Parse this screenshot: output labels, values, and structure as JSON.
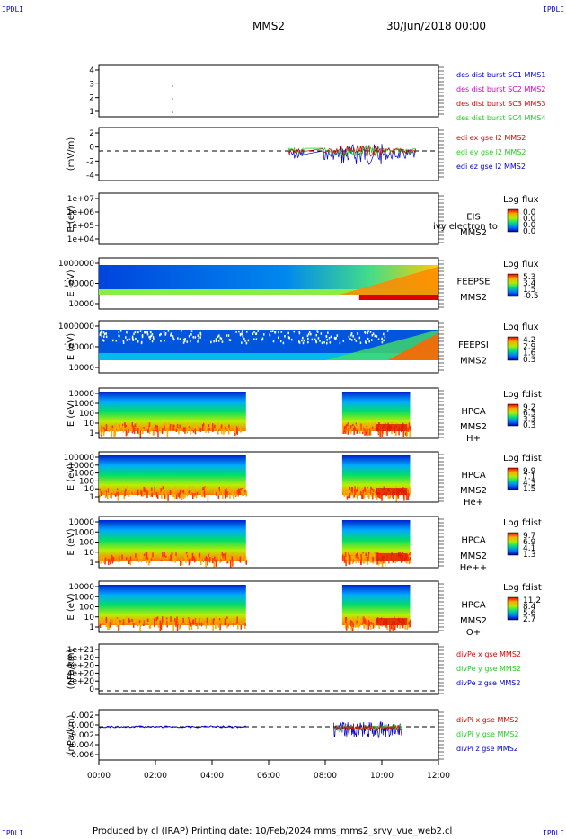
{
  "corners": {
    "tl": "IPDLI",
    "tr": "IPDLI",
    "bl": "IPDLI",
    "br": "IPDLI"
  },
  "header": {
    "mission": "MMS2",
    "date": "30/Jun/2018 00:00"
  },
  "footer": {
    "text": "Produced by cl (IRAP)   Printing date: 10/Feb/2024   mms_mms2_srvy_vue_web2.cl"
  },
  "colors": {
    "accent_blue": "#0000cc",
    "red": "#dd0000",
    "green": "#22cc22",
    "magenta": "#cc00cc"
  },
  "chart_data": [
    {
      "type": "scatter",
      "ylim": [
        0.5,
        4.5
      ],
      "yticks": [
        "4",
        "3",
        "2",
        "1"
      ],
      "legend": [
        {
          "label": "des dist burst SC1 MMS1",
          "color": "#0000cc"
        },
        {
          "label": "des dist burst SC2 MMS2",
          "color": "#cc00cc"
        },
        {
          "label": "des dist burst SC3 MMS3",
          "color": "#dd0000"
        },
        {
          "label": "des dist burst SC4 MMS4",
          "color": "#22cc22"
        }
      ]
    },
    {
      "type": "line",
      "ylabel": "(mV/m)",
      "ylim": [
        -5,
        3
      ],
      "yticks": [
        "2",
        "0",
        "-2",
        "-4"
      ],
      "legend": [
        {
          "label": "edi ex gse l2 MMS2",
          "color": "#dd0000"
        },
        {
          "label": "edi ey gse l2 MMS2",
          "color": "#22cc22"
        },
        {
          "label": "edi ez gse l2 MMS2",
          "color": "#0000cc"
        }
      ]
    },
    {
      "type": "heatmap",
      "ylabel": "E (eV)",
      "yscale": "log",
      "yticks": [
        "1e+07",
        "1e+06",
        "1e+05",
        "1e+04"
      ],
      "side": [
        "EIS",
        "MMS2"
      ],
      "overlay": "ivy electron to",
      "cbar_title": "Log flux",
      "cbar": [
        "0.0",
        "0.0",
        "0.0",
        "0.0"
      ]
    },
    {
      "type": "heatmap",
      "ylabel": "E (eV)",
      "yscale": "log",
      "yticks": [
        "1000000",
        "100000",
        "10000"
      ],
      "side": [
        "FEEPSE",
        "MMS2"
      ],
      "cbar_title": "Log flux",
      "cbar": [
        "5.3",
        "3.4",
        "1.5",
        "-0.5"
      ]
    },
    {
      "type": "heatmap",
      "ylabel": "E (eV)",
      "yscale": "log",
      "yticks": [
        "1000000",
        "100000",
        "10000"
      ],
      "side": [
        "FEEPSI",
        "MMS2"
      ],
      "cbar_title": "Log flux",
      "cbar": [
        "4.2",
        "2.9",
        "1.6",
        "0.3"
      ]
    },
    {
      "type": "heatmap",
      "ylabel": "E (eV)",
      "yscale": "log",
      "yticks": [
        "10000",
        "1000",
        "100",
        "10",
        "1"
      ],
      "side": [
        "HPCA",
        "MMS2",
        "H+"
      ],
      "cbar_title": "Log fdist",
      "cbar": [
        "9.2",
        "6.3",
        "3.3",
        "0.3"
      ]
    },
    {
      "type": "heatmap",
      "ylabel": "E (eV)",
      "yscale": "log",
      "yticks": [
        "100000",
        "10000",
        "1000",
        "100",
        "10",
        "1"
      ],
      "side": [
        "HPCA",
        "MMS2",
        "He+"
      ],
      "cbar_title": "Log fdist",
      "cbar": [
        "9.9",
        "7.1",
        "4.3",
        "1.5"
      ]
    },
    {
      "type": "heatmap",
      "ylabel": "E (eV)",
      "yscale": "log",
      "yticks": [
        "10000",
        "1000",
        "100",
        "10",
        "1"
      ],
      "side": [
        "HPCA",
        "MMS2",
        "He++"
      ],
      "cbar_title": "Log fdist",
      "cbar": [
        "9.7",
        "6.9",
        "4.1",
        "1.3"
      ]
    },
    {
      "type": "heatmap",
      "ylabel": "E (eV)",
      "yscale": "log",
      "yticks": [
        "10000",
        "1000",
        "100",
        "10",
        "1"
      ],
      "side": [
        "HPCA",
        "MMS2",
        "O+"
      ],
      "cbar_title": "Log fdist",
      "cbar": [
        "11.2",
        "8.4",
        "5.6",
        "2.7"
      ]
    },
    {
      "type": "line",
      "ylabel": "(nPa/km)",
      "ylim": [
        -2e+19,
        1.1e+21
      ],
      "yticks": [
        "1e+21",
        "8e+20",
        "6e+20",
        "4e+20",
        "2e+20",
        "0"
      ],
      "legend": [
        {
          "label": "divPe x gse MMS2",
          "color": "#dd0000"
        },
        {
          "label": "divPe y gse MMS2",
          "color": "#22cc22"
        },
        {
          "label": "divPe z gse MMS2",
          "color": "#0000cc"
        }
      ]
    },
    {
      "type": "line",
      "ylabel": "(nPa/km)",
      "ylim": [
        -0.0068,
        0.0035
      ],
      "yticks": [
        "0.002",
        "0.000",
        "-0.002",
        "-0.004",
        "-0.006"
      ],
      "legend": [
        {
          "label": "divPi x gse MMS2",
          "color": "#dd0000"
        },
        {
          "label": "divPi y gse MMS2",
          "color": "#22cc22"
        },
        {
          "label": "divPi z gse MMS2",
          "color": "#0000cc"
        }
      ]
    }
  ],
  "xaxis": {
    "ticks": [
      "00:00",
      "02:00",
      "04:00",
      "06:00",
      "08:00",
      "10:00",
      "12:00"
    ],
    "range_hours": [
      0,
      12
    ]
  }
}
